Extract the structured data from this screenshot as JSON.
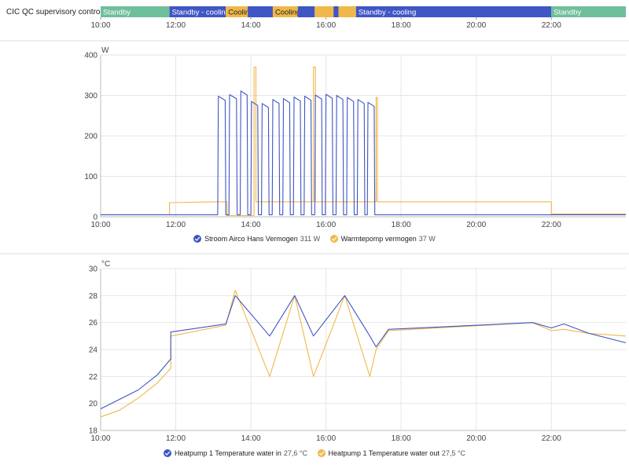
{
  "colors": {
    "standby": "#6fbf9a",
    "standby_cooling": "#3f56c4",
    "cooling": "#f0b84a",
    "blue": "#3f56c4",
    "orange": "#f0b84a",
    "grid": "#e6e6e6"
  },
  "timeline": {
    "title": "CIC QC supervisory control mode",
    "segments": [
      {
        "start": "10:00",
        "end": "11:50",
        "state": "standby",
        "label": "Standby"
      },
      {
        "start": "11:50",
        "end": "13:20",
        "state": "standby_cooling",
        "label": "Standby - cooling"
      },
      {
        "start": "13:20",
        "end": "13:55",
        "state": "cooling",
        "label": "Cooling"
      },
      {
        "start": "13:55",
        "end": "14:35",
        "state": "standby_cooling",
        "label": ""
      },
      {
        "start": "14:35",
        "end": "15:15",
        "state": "cooling",
        "label": "Cooling"
      },
      {
        "start": "15:15",
        "end": "15:42",
        "state": "standby_cooling",
        "label": ""
      },
      {
        "start": "15:42",
        "end": "16:12",
        "state": "cooling",
        "label": ""
      },
      {
        "start": "16:12",
        "end": "16:20",
        "state": "standby_cooling",
        "label": ""
      },
      {
        "start": "16:20",
        "end": "16:48",
        "state": "cooling",
        "label": ""
      },
      {
        "start": "16:48",
        "end": "22:00",
        "state": "standby_cooling",
        "label": "Standby - cooling"
      },
      {
        "start": "22:00",
        "end": "23:59",
        "state": "standby",
        "label": "Standby"
      }
    ]
  },
  "chart_data": [
    {
      "type": "line",
      "ylabel": "W",
      "ylim": [
        0,
        400
      ],
      "yticks": [
        0,
        100,
        200,
        300,
        400
      ],
      "x_range": [
        "10:00",
        "23:59"
      ],
      "xticks": [
        "10:00",
        "12:00",
        "14:00",
        "16:00",
        "18:00",
        "20:00",
        "22:00"
      ],
      "grid": true,
      "legend_position": "bottom",
      "series": [
        {
          "name": "Stroom Airco Hans Vermogen",
          "current": "311 W",
          "baseline_w": 5,
          "cycles": [
            {
              "start": "13:07",
              "end": "13:20",
              "peak": 298
            },
            {
              "start": "13:25",
              "end": "13:38",
              "peak": 302
            },
            {
              "start": "13:43",
              "end": "13:55",
              "peak": 311
            },
            {
              "start": "14:00",
              "end": "14:12",
              "peak": 285
            },
            {
              "start": "14:17",
              "end": "14:29",
              "peak": 280
            },
            {
              "start": "14:34",
              "end": "14:46",
              "peak": 290
            },
            {
              "start": "14:51",
              "end": "15:03",
              "peak": 292
            },
            {
              "start": "15:08",
              "end": "15:20",
              "peak": 296
            },
            {
              "start": "15:25",
              "end": "15:37",
              "peak": 298
            },
            {
              "start": "15:42",
              "end": "15:54",
              "peak": 301
            },
            {
              "start": "15:59",
              "end": "16:11",
              "peak": 303
            },
            {
              "start": "16:16",
              "end": "16:28",
              "peak": 300
            },
            {
              "start": "16:33",
              "end": "16:45",
              "peak": 295
            },
            {
              "start": "16:50",
              "end": "17:02",
              "peak": 290
            },
            {
              "start": "17:06",
              "end": "17:18",
              "peak": 283
            }
          ]
        },
        {
          "name": "Warmtepomp vermogen",
          "current": "37 W",
          "points": [
            [
              "10:00",
              5
            ],
            [
              "11:50",
              5
            ],
            [
              "11:50",
              35
            ],
            [
              "13:05",
              37
            ],
            [
              "13:22",
              37
            ],
            [
              "13:22",
              3
            ],
            [
              "14:05",
              3
            ],
            [
              "14:05",
              370
            ],
            [
              "14:08",
              370
            ],
            [
              "14:08",
              37
            ],
            [
              "15:40",
              37
            ],
            [
              "15:40",
              370
            ],
            [
              "15:43",
              370
            ],
            [
              "15:43",
              37
            ],
            [
              "17:20",
              37
            ],
            [
              "17:20",
              295
            ],
            [
              "17:22",
              295
            ],
            [
              "17:22",
              37
            ],
            [
              "22:00",
              37
            ],
            [
              "22:00",
              7
            ],
            [
              "23:59",
              7
            ]
          ]
        }
      ]
    },
    {
      "type": "line",
      "ylabel": "°C",
      "ylim": [
        18,
        30
      ],
      "yticks": [
        18,
        20,
        22,
        24,
        26,
        28,
        30
      ],
      "x_range": [
        "10:00",
        "23:59"
      ],
      "xticks": [
        "10:00",
        "12:00",
        "14:00",
        "16:00",
        "18:00",
        "20:00",
        "22:00"
      ],
      "grid": true,
      "legend_position": "bottom",
      "series": [
        {
          "name": "Heatpump 1 Temperature water in",
          "current": "27,6 °C",
          "points": [
            [
              "10:00",
              19.6
            ],
            [
              "10:30",
              20.3
            ],
            [
              "11:00",
              21.0
            ],
            [
              "11:30",
              22.1
            ],
            [
              "11:52",
              23.3
            ],
            [
              "11:52",
              25.3
            ],
            [
              "13:20",
              25.9
            ],
            [
              "13:35",
              28.0
            ],
            [
              "14:30",
              25.0
            ],
            [
              "15:10",
              28.0
            ],
            [
              "15:40",
              25.0
            ],
            [
              "16:30",
              28.0
            ],
            [
              "17:10",
              25.0
            ],
            [
              "17:20",
              24.2
            ],
            [
              "17:40",
              25.5
            ],
            [
              "21:30",
              26.0
            ],
            [
              "22:00",
              25.6
            ],
            [
              "22:20",
              25.9
            ],
            [
              "23:00",
              25.2
            ],
            [
              "23:59",
              24.5
            ]
          ]
        },
        {
          "name": "Heatpump 1 Temperature water out",
          "current": "27,5 °C",
          "points": [
            [
              "10:00",
              19.0
            ],
            [
              "10:30",
              19.5
            ],
            [
              "11:00",
              20.4
            ],
            [
              "11:30",
              21.5
            ],
            [
              "11:52",
              22.6
            ],
            [
              "11:52",
              25.0
            ],
            [
              "13:20",
              25.8
            ],
            [
              "13:35",
              28.4
            ],
            [
              "14:30",
              22.0
            ],
            [
              "15:10",
              28.0
            ],
            [
              "15:40",
              22.0
            ],
            [
              "16:30",
              28.0
            ],
            [
              "17:10",
              22.0
            ],
            [
              "17:20",
              24.0
            ],
            [
              "17:40",
              25.4
            ],
            [
              "21:30",
              26.0
            ],
            [
              "22:00",
              25.4
            ],
            [
              "22:20",
              25.5
            ],
            [
              "23:00",
              25.2
            ],
            [
              "23:59",
              25.0
            ]
          ]
        }
      ]
    }
  ]
}
